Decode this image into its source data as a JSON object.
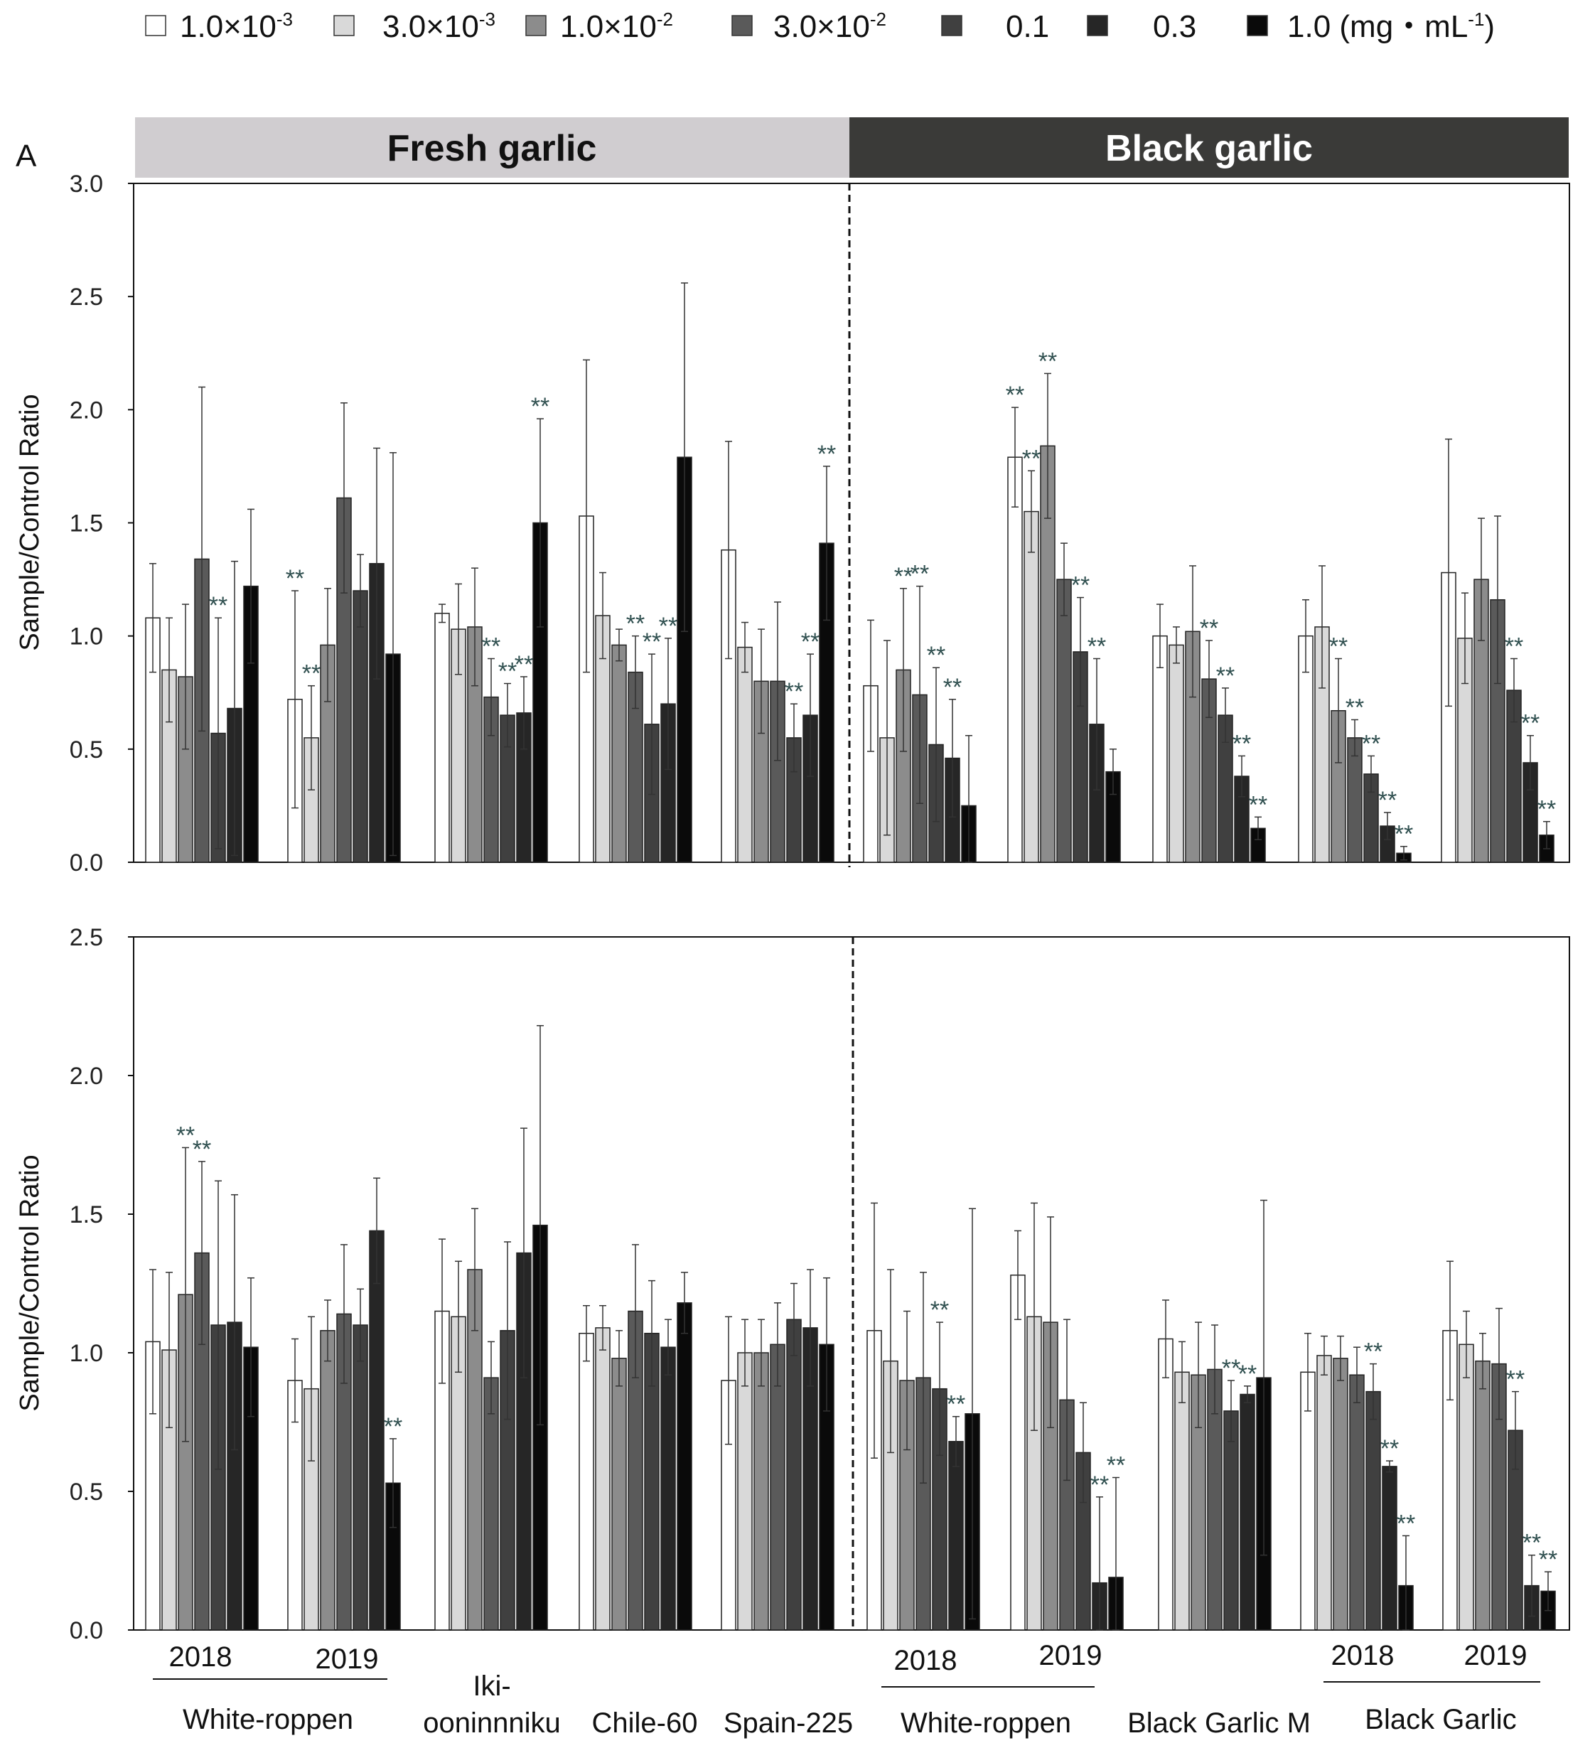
{
  "legend": [
    {
      "base": "1.0×10",
      "sup": "-3",
      "tail": "",
      "color": "#ffffff"
    },
    {
      "base": "3.0×10",
      "sup": "-3",
      "tail": "",
      "color": "#d9d9d9"
    },
    {
      "base": "1.0×10",
      "sup": "-2",
      "tail": "",
      "color": "#8c8c8c"
    },
    {
      "base": "3.0×10",
      "sup": "-2",
      "tail": "",
      "color": "#5a5a5a"
    },
    {
      "base": "0.1",
      "sup": "",
      "tail": "",
      "color": "#404040"
    },
    {
      "base": "0.3",
      "sup": "",
      "tail": "",
      "color": "#262626"
    },
    {
      "base": "1.0 (mg・mL",
      "sup": "-1",
      "tail": ")",
      "color": "#0a0a0a"
    }
  ],
  "banners": {
    "fresh": "Fresh garlic",
    "black": "Black garlic",
    "fresh_color": "#d0cdd0",
    "black_color": "#3a3a38"
  },
  "panel_label": "A",
  "group_labels": {
    "years": [
      "2018",
      "2019",
      "2018",
      "2019",
      "2018",
      "2019"
    ],
    "names": [
      "White-roppen",
      "Iki-",
      "ooninnniku",
      "Chile-60",
      "Spain-225",
      "White-roppen",
      "Black Garlic M",
      "Black Garlic"
    ]
  },
  "significance_mark": "**",
  "chart_data": [
    {
      "type": "bar",
      "ylabel": "Sample/Control Ratio",
      "ylim": [
        0,
        3.0
      ],
      "yticks": [
        "0.0",
        "0.5",
        "1.0",
        "1.5",
        "2.0",
        "2.5",
        "3.0"
      ],
      "categories": [
        "White-roppen 2018",
        "White-roppen 2019",
        "Iki-ooninnniku",
        "Chile-60",
        "Spain-225",
        "Black White-roppen 2018",
        "Black White-roppen 2019",
        "Black Garlic M",
        "Black Garlic 2018",
        "Black Garlic 2019"
      ],
      "series_labels": [
        "1.0×10-3",
        "3.0×10-3",
        "1.0×10-2",
        "3.0×10-2",
        "0.1",
        "0.3",
        "1.0 (mg・mL-1)"
      ],
      "values": [
        [
          1.08,
          0.85,
          0.82,
          1.34,
          0.57,
          0.68,
          1.22
        ],
        [
          0.72,
          0.55,
          0.96,
          1.61,
          1.2,
          1.32,
          0.92
        ],
        [
          1.1,
          1.03,
          1.04,
          0.73,
          0.65,
          0.66,
          1.5
        ],
        [
          1.53,
          1.09,
          0.96,
          0.84,
          0.61,
          0.7,
          1.79
        ],
        [
          1.38,
          0.95,
          0.8,
          0.8,
          0.55,
          0.65,
          1.41
        ],
        [
          0.78,
          0.55,
          0.85,
          0.74,
          0.52,
          0.46,
          0.25
        ],
        [
          1.79,
          1.55,
          1.84,
          1.25,
          0.93,
          0.61,
          0.4
        ],
        [
          1.0,
          0.96,
          1.02,
          0.81,
          0.65,
          0.38,
          0.15
        ],
        [
          1.0,
          1.04,
          0.67,
          0.55,
          0.39,
          0.16,
          0.04
        ],
        [
          1.28,
          0.99,
          1.25,
          1.16,
          0.76,
          0.44,
          0.12
        ]
      ],
      "errors": [
        [
          0.24,
          0.23,
          0.32,
          0.76,
          0.51,
          0.65,
          0.34
        ],
        [
          0.48,
          0.23,
          0.25,
          0.42,
          0.16,
          0.51,
          0.89
        ],
        [
          0.04,
          0.2,
          0.26,
          0.17,
          0.14,
          0.16,
          0.46
        ],
        [
          0.69,
          0.19,
          0.07,
          0.16,
          0.31,
          0.29,
          0.77
        ],
        [
          0.48,
          0.11,
          0.23,
          0.35,
          0.15,
          0.27,
          0.34
        ],
        [
          0.29,
          0.43,
          0.36,
          0.48,
          0.34,
          0.26,
          0.31
        ],
        [
          0.22,
          0.18,
          0.32,
          0.16,
          0.24,
          0.29,
          0.1
        ],
        [
          0.14,
          0.08,
          0.29,
          0.17,
          0.12,
          0.09,
          0.05
        ],
        [
          0.16,
          0.27,
          0.23,
          0.08,
          0.08,
          0.06,
          0.03
        ],
        [
          0.59,
          0.2,
          0.27,
          0.37,
          0.14,
          0.12,
          0.06
        ]
      ],
      "stars": [
        [
          0,
          0,
          0,
          0,
          1,
          0,
          0
        ],
        [
          1,
          1,
          0,
          0,
          0,
          0,
          0
        ],
        [
          0,
          0,
          0,
          1,
          1,
          1,
          1
        ],
        [
          0,
          0,
          0,
          1,
          1,
          1,
          0
        ],
        [
          0,
          0,
          0,
          0,
          1,
          1,
          1
        ],
        [
          0,
          0,
          1,
          1,
          1,
          1,
          0
        ],
        [
          1,
          1,
          1,
          0,
          1,
          1,
          0
        ],
        [
          0,
          0,
          0,
          1,
          1,
          1,
          1
        ],
        [
          0,
          0,
          1,
          1,
          1,
          1,
          1
        ],
        [
          0,
          0,
          0,
          0,
          1,
          1,
          1
        ]
      ]
    },
    {
      "type": "bar",
      "ylabel": "Sample/Control Ratio",
      "ylim": [
        0,
        2.5
      ],
      "yticks": [
        "0.0",
        "0.5",
        "1.0",
        "1.5",
        "2.0",
        "2.5"
      ],
      "categories": [
        "White-roppen 2018",
        "White-roppen 2019",
        "Iki-ooninnniku",
        "Chile-60",
        "Spain-225",
        "Black White-roppen 2018",
        "Black White-roppen 2019",
        "Black Garlic M",
        "Black Garlic 2018",
        "Black Garlic 2019"
      ],
      "series_labels": [
        "1.0×10-3",
        "3.0×10-3",
        "1.0×10-2",
        "3.0×10-2",
        "0.1",
        "0.3",
        "1.0 (mg・mL-1)"
      ],
      "values": [
        [
          1.04,
          1.01,
          1.21,
          1.36,
          1.1,
          1.11,
          1.02
        ],
        [
          0.9,
          0.87,
          1.08,
          1.14,
          1.1,
          1.44,
          0.53
        ],
        [
          1.15,
          1.13,
          1.3,
          0.91,
          1.08,
          1.36,
          1.46
        ],
        [
          1.07,
          1.09,
          0.98,
          1.15,
          1.07,
          1.02,
          1.18
        ],
        [
          0.9,
          1.0,
          1.0,
          1.03,
          1.12,
          1.09,
          1.03
        ],
        [
          1.08,
          0.97,
          0.9,
          0.91,
          0.87,
          0.68,
          0.78
        ],
        [
          1.28,
          1.13,
          1.11,
          0.83,
          0.64,
          0.17,
          0.19
        ],
        [
          1.05,
          0.93,
          0.92,
          0.94,
          0.79,
          0.85,
          0.91
        ],
        [
          0.93,
          0.99,
          0.98,
          0.92,
          0.86,
          0.59,
          0.16
        ],
        [
          1.08,
          1.03,
          0.97,
          0.96,
          0.72,
          0.16,
          0.14
        ]
      ],
      "errors": [
        [
          0.26,
          0.28,
          0.53,
          0.33,
          0.52,
          0.46,
          0.25
        ],
        [
          0.15,
          0.26,
          0.11,
          0.25,
          0.13,
          0.19,
          0.16
        ],
        [
          0.26,
          0.2,
          0.22,
          0.13,
          0.32,
          0.45,
          0.72
        ],
        [
          0.1,
          0.08,
          0.1,
          0.24,
          0.19,
          0.1,
          0.11
        ],
        [
          0.23,
          0.12,
          0.12,
          0.15,
          0.13,
          0.21,
          0.24
        ],
        [
          0.46,
          0.33,
          0.25,
          0.38,
          0.24,
          0.09,
          0.74
        ],
        [
          0.16,
          0.41,
          0.38,
          0.29,
          0.18,
          0.31,
          0.36
        ],
        [
          0.14,
          0.11,
          0.19,
          0.16,
          0.11,
          0.03,
          0.64
        ],
        [
          0.14,
          0.07,
          0.08,
          0.1,
          0.1,
          0.02,
          0.18
        ],
        [
          0.25,
          0.12,
          0.1,
          0.2,
          0.14,
          0.11,
          0.07
        ]
      ],
      "stars": [
        [
          0,
          0,
          1,
          1,
          0,
          0,
          0
        ],
        [
          0,
          0,
          0,
          0,
          0,
          0,
          1
        ],
        [
          0,
          0,
          0,
          0,
          0,
          0,
          0
        ],
        [
          0,
          0,
          0,
          0,
          0,
          0,
          0
        ],
        [
          0,
          0,
          0,
          0,
          0,
          0,
          0
        ],
        [
          0,
          0,
          0,
          0,
          1,
          1,
          0
        ],
        [
          0,
          0,
          0,
          0,
          0,
          1,
          1
        ],
        [
          0,
          0,
          0,
          0,
          1,
          1,
          0
        ],
        [
          0,
          0,
          0,
          0,
          1,
          1,
          1
        ],
        [
          0,
          0,
          0,
          0,
          1,
          1,
          1
        ]
      ]
    }
  ]
}
